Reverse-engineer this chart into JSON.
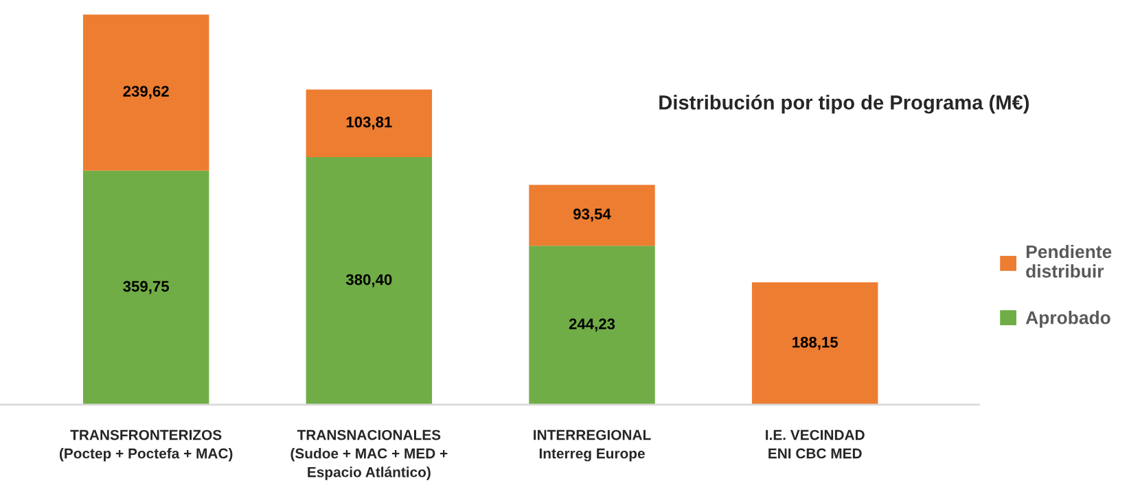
{
  "chart_data": {
    "type": "bar",
    "title": "Distribución por tipo de Programa (M€)",
    "categories": [
      "TRANSFRONTERIZOS\n(Poctep + Poctefa + MAC)",
      "TRANSNACIONALES\n(Sudoe + MAC + MED +\nEspacio Atlántico)",
      "INTERREGIONAL\nInterreg Europe",
      "I.E. VECINDAD\nENI CBC MED"
    ],
    "stacked": true,
    "series": [
      {
        "name": "Aprobado",
        "color": "#70ad47",
        "values": [
          359.75,
          380.4,
          244.23,
          null
        ],
        "value_labels": [
          "359,75",
          "380,40",
          "244,23",
          null
        ]
      },
      {
        "name": "Pendiente\ndistribuir",
        "color": "#ed7d31",
        "values": [
          239.62,
          103.81,
          93.54,
          188.15
        ],
        "value_labels": [
          "239,62",
          "103,81",
          "93,54",
          "188,15"
        ]
      }
    ],
    "legend": "right",
    "tick_labels": "x"
  }
}
